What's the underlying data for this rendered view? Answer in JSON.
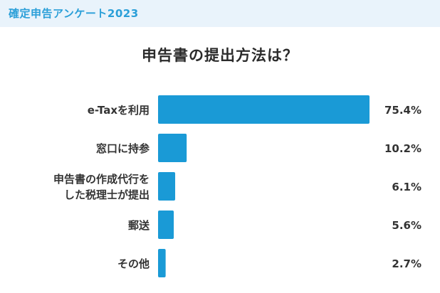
{
  "header": {
    "title": "確定申告アンケート2023"
  },
  "chart_data": {
    "type": "bar",
    "orientation": "horizontal",
    "title": "申告書の提出方法は？",
    "categories": [
      [
        "e-Taxを利用"
      ],
      [
        "窓口に持参"
      ],
      [
        "申告書の作成代行を",
        "した税理士が提出"
      ],
      [
        "郵送"
      ],
      [
        "その他"
      ]
    ],
    "values": [
      75.4,
      10.2,
      6.1,
      5.6,
      2.7
    ],
    "value_labels": [
      "75.4%",
      "10.2%",
      "6.1%",
      "5.6%",
      "2.7%"
    ],
    "unit": "%",
    "xlim": [
      0,
      75.4
    ],
    "grid": false,
    "legend": "none",
    "bar_color": "#1a9ad6",
    "title_color": "#2b2b2b"
  },
  "colors": {
    "accent": "#2a9fd8",
    "header_bg": "#e9f3fb"
  }
}
